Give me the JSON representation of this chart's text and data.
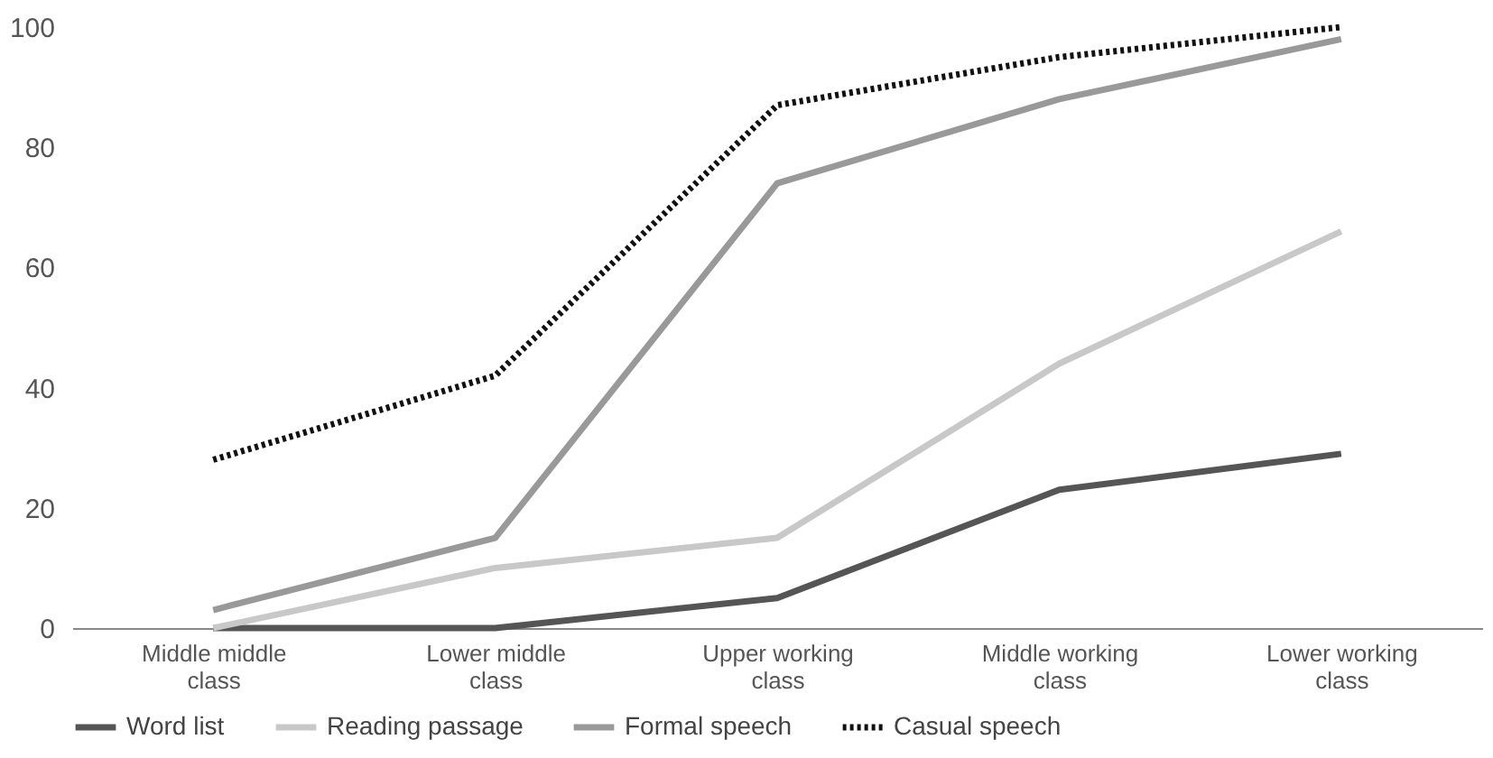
{
  "chart_data": {
    "type": "line",
    "categories": [
      "Middle middle class",
      "Lower middle class",
      "Upper working class",
      "Middle working class",
      "Lower working class"
    ],
    "series": [
      {
        "name": "Word list",
        "color": "#555555",
        "line_style": "solid",
        "values": [
          0,
          0,
          5,
          23,
          29
        ]
      },
      {
        "name": "Reading passage",
        "color": "#c8c8c8",
        "line_style": "solid",
        "values": [
          0,
          10,
          15,
          44,
          66
        ]
      },
      {
        "name": "Formal speech",
        "color": "#999999",
        "line_style": "solid",
        "values": [
          3,
          15,
          74,
          88,
          98
        ]
      },
      {
        "name": "Casual speech",
        "color": "#111111",
        "line_style": "dotted",
        "values": [
          28,
          42,
          87,
          95,
          100
        ]
      }
    ],
    "ylim": [
      0,
      100
    ],
    "yticks": [
      0,
      20,
      40,
      60,
      80,
      100
    ],
    "grid": false,
    "legend": "bottom",
    "marker": "none"
  }
}
